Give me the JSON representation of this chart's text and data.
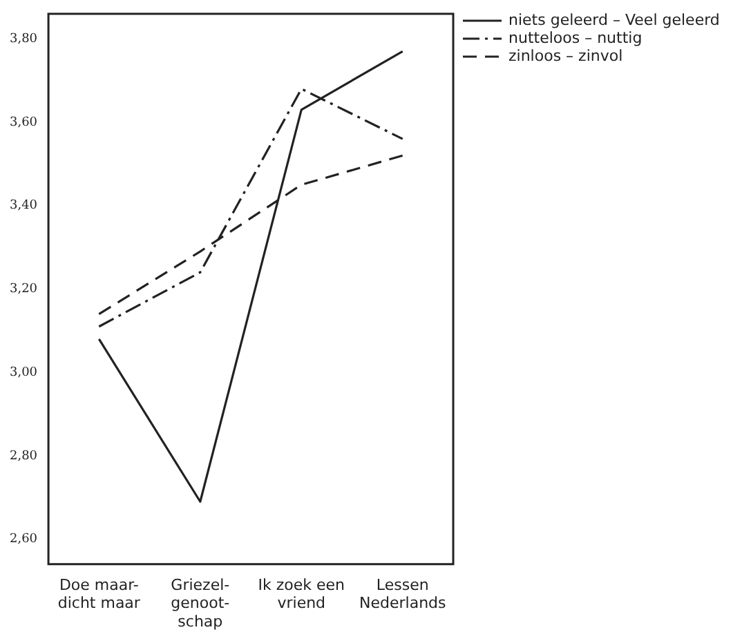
{
  "chart_data": {
    "type": "line",
    "categories": [
      "Doe maar-\ndicht maar",
      "Griezel-\ngenoot-\nschap",
      "Ik zoek een\nvriend",
      "Lessen\nNederlands"
    ],
    "series": [
      {
        "name": "niets geleerd – Veel geleerd",
        "color": "#222222",
        "line_style": "solid",
        "values": [
          3.08,
          2.69,
          3.63,
          3.77
        ]
      },
      {
        "name": "nutteloos – nuttig",
        "color": "#222222",
        "line_style": "dashdot",
        "values": [
          3.11,
          3.24,
          3.68,
          3.56
        ]
      },
      {
        "name": "zinloos – zinvol",
        "color": "#222222",
        "line_style": "dashed",
        "values": [
          3.14,
          3.29,
          3.45,
          3.52
        ]
      }
    ],
    "ylim": [
      2.54,
      3.86
    ],
    "yticks": [
      {
        "value": 2.6,
        "label": "2,60"
      },
      {
        "value": 2.8,
        "label": "2,80"
      },
      {
        "value": 3.0,
        "label": "3,00"
      },
      {
        "value": 3.2,
        "label": "3,20"
      },
      {
        "value": 3.4,
        "label": "3,40"
      },
      {
        "value": 3.6,
        "label": "3,60"
      },
      {
        "value": 3.8,
        "label": "3,80"
      }
    ],
    "grid": false,
    "legend": "top right",
    "marker": "none"
  }
}
